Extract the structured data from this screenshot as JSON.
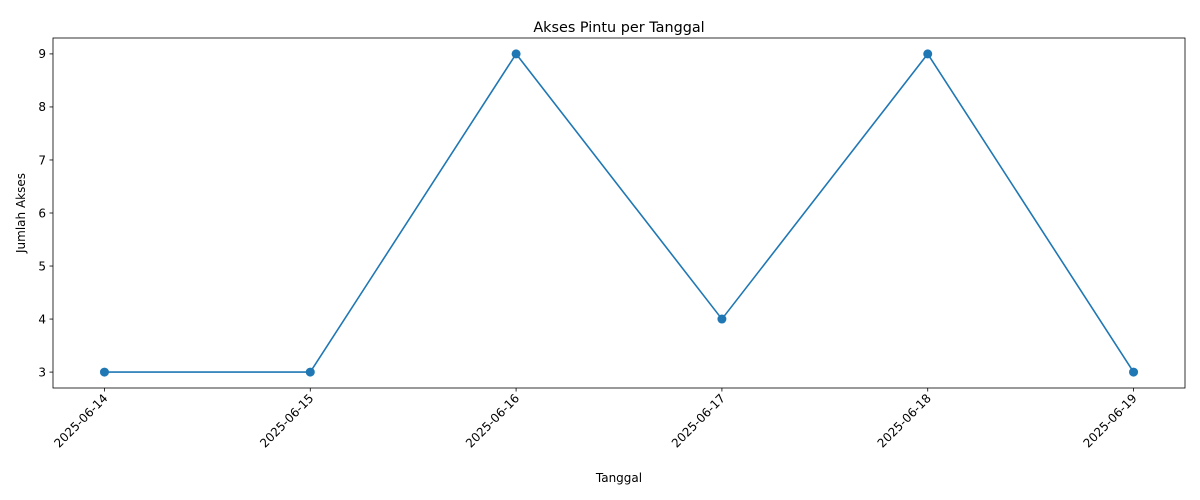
{
  "chart_data": {
    "type": "line",
    "title": "Akses Pintu per Tanggal",
    "xlabel": "Tanggal",
    "ylabel": "Jumlah Akses",
    "categories": [
      "2025-06-14",
      "2025-06-15",
      "2025-06-16",
      "2025-06-17",
      "2025-06-18",
      "2025-06-19"
    ],
    "series": [
      {
        "values": [
          3,
          3,
          9,
          4,
          9,
          3
        ],
        "color": "#1f77b4",
        "marker": "circle"
      }
    ],
    "yticks": [
      3,
      4,
      5,
      6,
      7,
      8,
      9
    ],
    "ylim": [
      2.7,
      9.3
    ],
    "grid": false,
    "legend": "none",
    "xtick_rotation": 45
  }
}
